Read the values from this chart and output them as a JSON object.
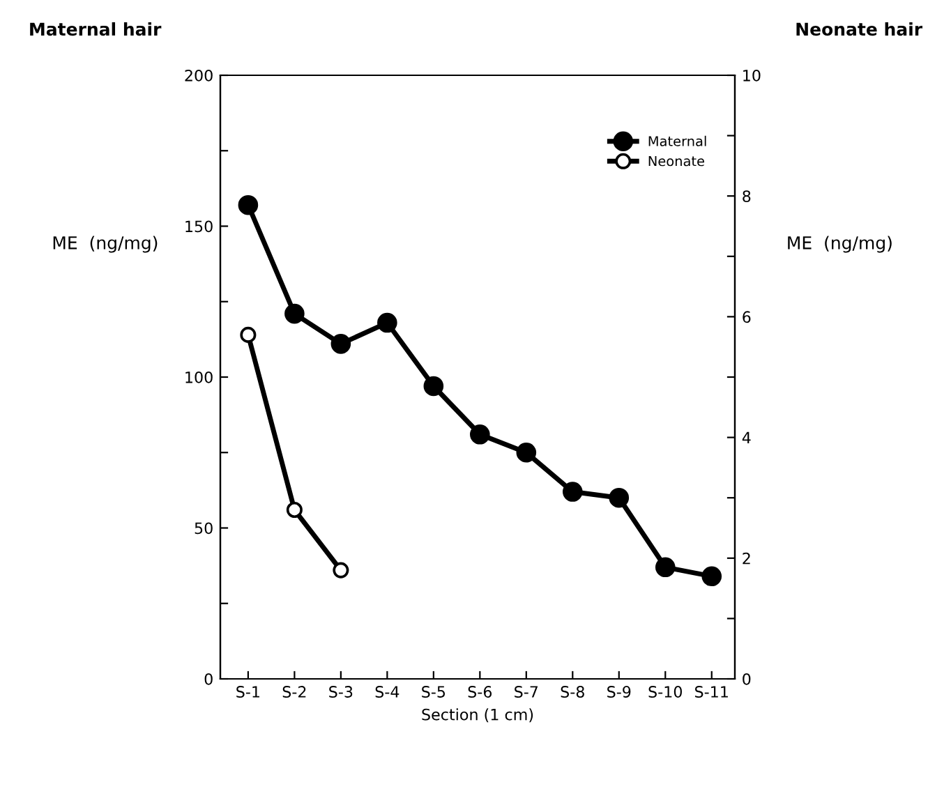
{
  "chart_data": {
    "type": "line",
    "title": "Maternal hair",
    "subtitle": "Neonate hair",
    "xlabel": "Section (1 cm)",
    "ylabel": "ME  (ng/mg)",
    "y2label": "ME  (ng/mg)",
    "categories": [
      "S-1",
      "S-2",
      "S-3",
      "S-4",
      "S-5",
      "S-6",
      "S-7",
      "S-8",
      "S-9",
      "S-10",
      "S-11"
    ],
    "series": [
      {
        "name": "Maternal",
        "color": "#000000",
        "values": [
          157,
          121,
          111,
          118,
          97,
          81,
          75,
          62,
          60,
          37,
          34
        ]
      },
      {
        "name": "Neonate",
        "color": "#000000",
        "axis": "y2",
        "values": [
          5.7,
          2.8,
          1.8,
          null,
          null,
          null,
          null,
          null,
          null,
          null,
          null
        ]
      }
    ],
    "ylim": [
      0,
      200
    ],
    "yticks": [
      0,
      {
        "value": 25,
        "label": null
      },
      50,
      {
        "value": 75,
        "label": null
      },
      100,
      {
        "value": 125,
        "label": null
      },
      150,
      {
        "value": 175,
        "label": null
      },
      200
    ],
    "y2lim": [
      0,
      10
    ],
    "y2ticks": [
      0,
      {
        "value": 1,
        "label": null
      },
      2,
      {
        "value": 3,
        "label": null
      },
      4,
      {
        "value": 5,
        "label": null
      },
      6,
      {
        "value": 7,
        "label": null
      },
      8,
      {
        "value": 9,
        "label": null
      },
      10
    ],
    "marker": "circle",
    "line_style": "solid",
    "legend": "top right",
    "grid": false
  }
}
